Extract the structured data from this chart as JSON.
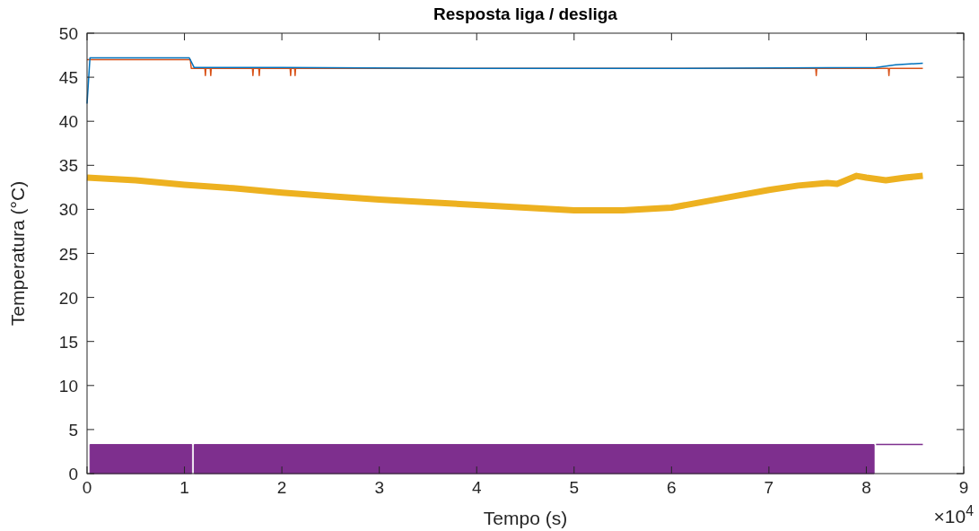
{
  "chart_data": {
    "type": "line",
    "title": "Resposta liga / desliga",
    "xlabel": "Tempo (s)",
    "ylabel": "Temperatura (°C)",
    "annotations": [
      "×10$^{4}$"
    ],
    "xlim": [
      0,
      9
    ],
    "xticks": [
      0,
      1,
      2,
      3,
      4,
      5,
      6,
      7,
      8,
      9
    ],
    "ylim": [
      0,
      50
    ],
    "yticks": [
      0,
      5,
      10,
      15,
      20,
      25,
      30,
      35,
      40,
      45,
      50
    ],
    "grid": false,
    "series": [
      {
        "color": "#d95319",
        "x": [
          0,
          1.06,
          1.07,
          1.21,
          1.215,
          1.22,
          1.265,
          1.27,
          1.275,
          1.698,
          1.703,
          1.708,
          1.763,
          1.768,
          1.773,
          2.085,
          2.09,
          2.095,
          2.131,
          2.136,
          2.141,
          7.481,
          7.486,
          7.491,
          8.227,
          8.232,
          8.237,
          8.58
        ],
        "values": [
          47,
          47,
          46,
          46,
          45.2,
          46,
          46,
          45.2,
          46,
          46,
          45.2,
          46,
          46,
          45.2,
          46,
          46,
          45.2,
          46,
          46,
          45.2,
          46,
          46,
          45.2,
          46,
          46,
          45.2,
          46,
          46
        ]
      },
      {
        "color": "#0072bd",
        "x": [
          0,
          0.03,
          0.5,
          1.05,
          1.1,
          2,
          4,
          6,
          8.1,
          8.3,
          8.58
        ],
        "values": [
          42,
          47.2,
          47.2,
          47.2,
          46.1,
          46.1,
          46,
          46,
          46.1,
          46.4,
          46.6
        ]
      },
      {
        "color": "#edb120",
        "x": [
          0,
          0.5,
          1,
          1.5,
          2,
          2.5,
          3,
          3.5,
          4,
          4.5,
          5,
          5.5,
          6,
          6.5,
          7,
          7.3,
          7.6,
          7.7,
          7.9,
          8,
          8.2,
          8.4,
          8.58
        ],
        "values": [
          33.6,
          33.3,
          32.8,
          32.4,
          31.9,
          31.5,
          31.1,
          30.8,
          30.5,
          30.2,
          29.9,
          29.9,
          30.2,
          31.2,
          32.2,
          32.7,
          33,
          32.9,
          33.8,
          33.6,
          33.3,
          33.6,
          33.8
        ]
      },
      {
        "type": "area",
        "color": "#7e2f8e",
        "x": [
          0.03,
          1.075,
          1.08,
          1.1,
          8.08
        ],
        "values": [
          3.3,
          3.3,
          null,
          3.3,
          3.3
        ]
      },
      {
        "color": "#7e2f8e",
        "x": [
          8.1,
          8.58
        ],
        "values": [
          3.3,
          3.3
        ]
      }
    ]
  }
}
